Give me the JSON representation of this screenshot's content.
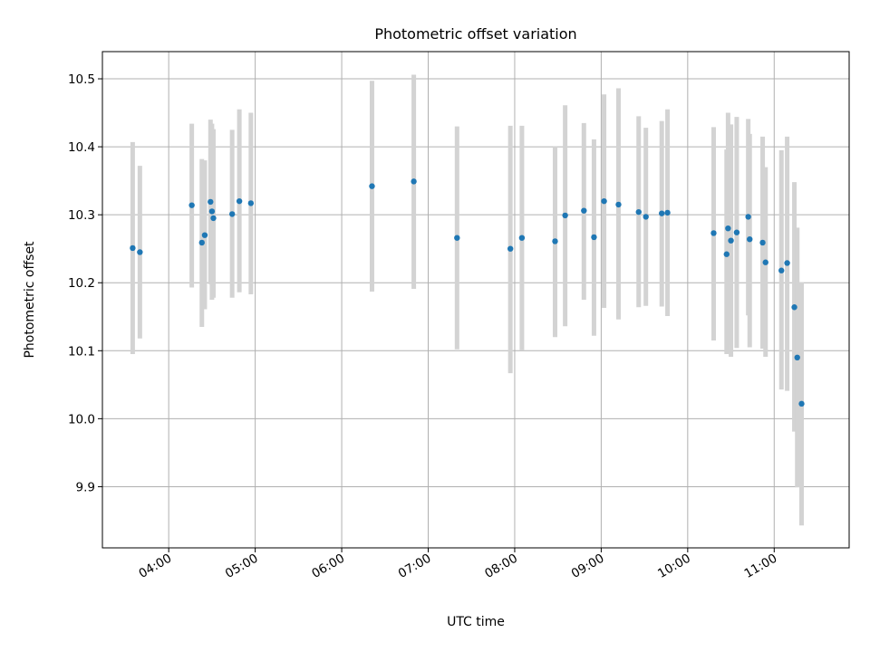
{
  "chart_data": {
    "type": "scatter",
    "title": "Photometric offset variation",
    "xlabel": "UTC time",
    "ylabel": "Photometric offset",
    "xlim": [
      "03:14",
      "11:52"
    ],
    "ylim": [
      9.81,
      10.54
    ],
    "x_ticks": [
      "04:00",
      "05:00",
      "06:00",
      "07:00",
      "08:00",
      "09:00",
      "10:00",
      "11:00"
    ],
    "y_ticks": [
      "9.9",
      "10.0",
      "10.1",
      "10.2",
      "10.3",
      "10.4",
      "10.5"
    ],
    "grid": true,
    "colors": {
      "point": "#1f77b4",
      "errorbar": "#d3d3d3",
      "grid": "#b0b0b0"
    },
    "points": [
      {
        "time": "03:35",
        "y": 10.251,
        "low": 10.095,
        "high": 10.407
      },
      {
        "time": "03:40",
        "y": 10.245,
        "low": 10.118,
        "high": 10.372
      },
      {
        "time": "04:16",
        "y": 10.314,
        "low": 10.193,
        "high": 10.434
      },
      {
        "time": "04:23",
        "y": 10.259,
        "low": 10.135,
        "high": 10.382
      },
      {
        "time": "04:25",
        "y": 10.27,
        "low": 10.161,
        "high": 10.38
      },
      {
        "time": "04:29",
        "y": 10.319,
        "low": 10.198,
        "high": 10.44
      },
      {
        "time": "04:30",
        "y": 10.305,
        "low": 10.175,
        "high": 10.434
      },
      {
        "time": "04:31",
        "y": 10.295,
        "low": 10.178,
        "high": 10.426
      },
      {
        "time": "04:44",
        "y": 10.301,
        "low": 10.178,
        "high": 10.425
      },
      {
        "time": "04:49",
        "y": 10.32,
        "low": 10.186,
        "high": 10.455
      },
      {
        "time": "04:57",
        "y": 10.317,
        "low": 10.183,
        "high": 10.45
      },
      {
        "time": "06:21",
        "y": 10.342,
        "low": 10.187,
        "high": 10.497
      },
      {
        "time": "06:50",
        "y": 10.349,
        "low": 10.191,
        "high": 10.506
      },
      {
        "time": "07:20",
        "y": 10.266,
        "low": 10.102,
        "high": 10.43
      },
      {
        "time": "07:57",
        "y": 10.25,
        "low": 10.067,
        "high": 10.431
      },
      {
        "time": "08:05",
        "y": 10.266,
        "low": 10.101,
        "high": 10.431
      },
      {
        "time": "08:28",
        "y": 10.261,
        "low": 10.12,
        "high": 10.401
      },
      {
        "time": "08:35",
        "y": 10.299,
        "low": 10.136,
        "high": 10.461
      },
      {
        "time": "08:48",
        "y": 10.306,
        "low": 10.175,
        "high": 10.435
      },
      {
        "time": "08:55",
        "y": 10.267,
        "low": 10.122,
        "high": 10.411
      },
      {
        "time": "09:02",
        "y": 10.32,
        "low": 10.163,
        "high": 10.477
      },
      {
        "time": "09:12",
        "y": 10.315,
        "low": 10.146,
        "high": 10.486
      },
      {
        "time": "09:26",
        "y": 10.304,
        "low": 10.164,
        "high": 10.445
      },
      {
        "time": "09:31",
        "y": 10.297,
        "low": 10.166,
        "high": 10.428
      },
      {
        "time": "09:42",
        "y": 10.302,
        "low": 10.165,
        "high": 10.438
      },
      {
        "time": "09:46",
        "y": 10.303,
        "low": 10.151,
        "high": 10.455
      },
      {
        "time": "10:18",
        "y": 10.273,
        "low": 10.115,
        "high": 10.429
      },
      {
        "time": "10:27",
        "y": 10.242,
        "low": 10.095,
        "high": 10.396
      },
      {
        "time": "10:28",
        "y": 10.28,
        "low": 10.108,
        "high": 10.45
      },
      {
        "time": "10:30",
        "y": 10.262,
        "low": 10.091,
        "high": 10.433
      },
      {
        "time": "10:34",
        "y": 10.274,
        "low": 10.104,
        "high": 10.444
      },
      {
        "time": "10:42",
        "y": 10.297,
        "low": 10.152,
        "high": 10.441
      },
      {
        "time": "10:43",
        "y": 10.264,
        "low": 10.105,
        "high": 10.419
      },
      {
        "time": "10:52",
        "y": 10.259,
        "low": 10.103,
        "high": 10.415
      },
      {
        "time": "10:54",
        "y": 10.23,
        "low": 10.091,
        "high": 10.37
      },
      {
        "time": "11:05",
        "y": 10.218,
        "low": 10.043,
        "high": 10.395
      },
      {
        "time": "11:09",
        "y": 10.229,
        "low": 10.041,
        "high": 10.415
      },
      {
        "time": "11:14",
        "y": 10.164,
        "low": 9.981,
        "high": 10.348
      },
      {
        "time": "11:16",
        "y": 10.09,
        "low": 9.899,
        "high": 10.281
      },
      {
        "time": "11:19",
        "y": 10.022,
        "low": 9.843,
        "high": 10.201
      }
    ]
  }
}
